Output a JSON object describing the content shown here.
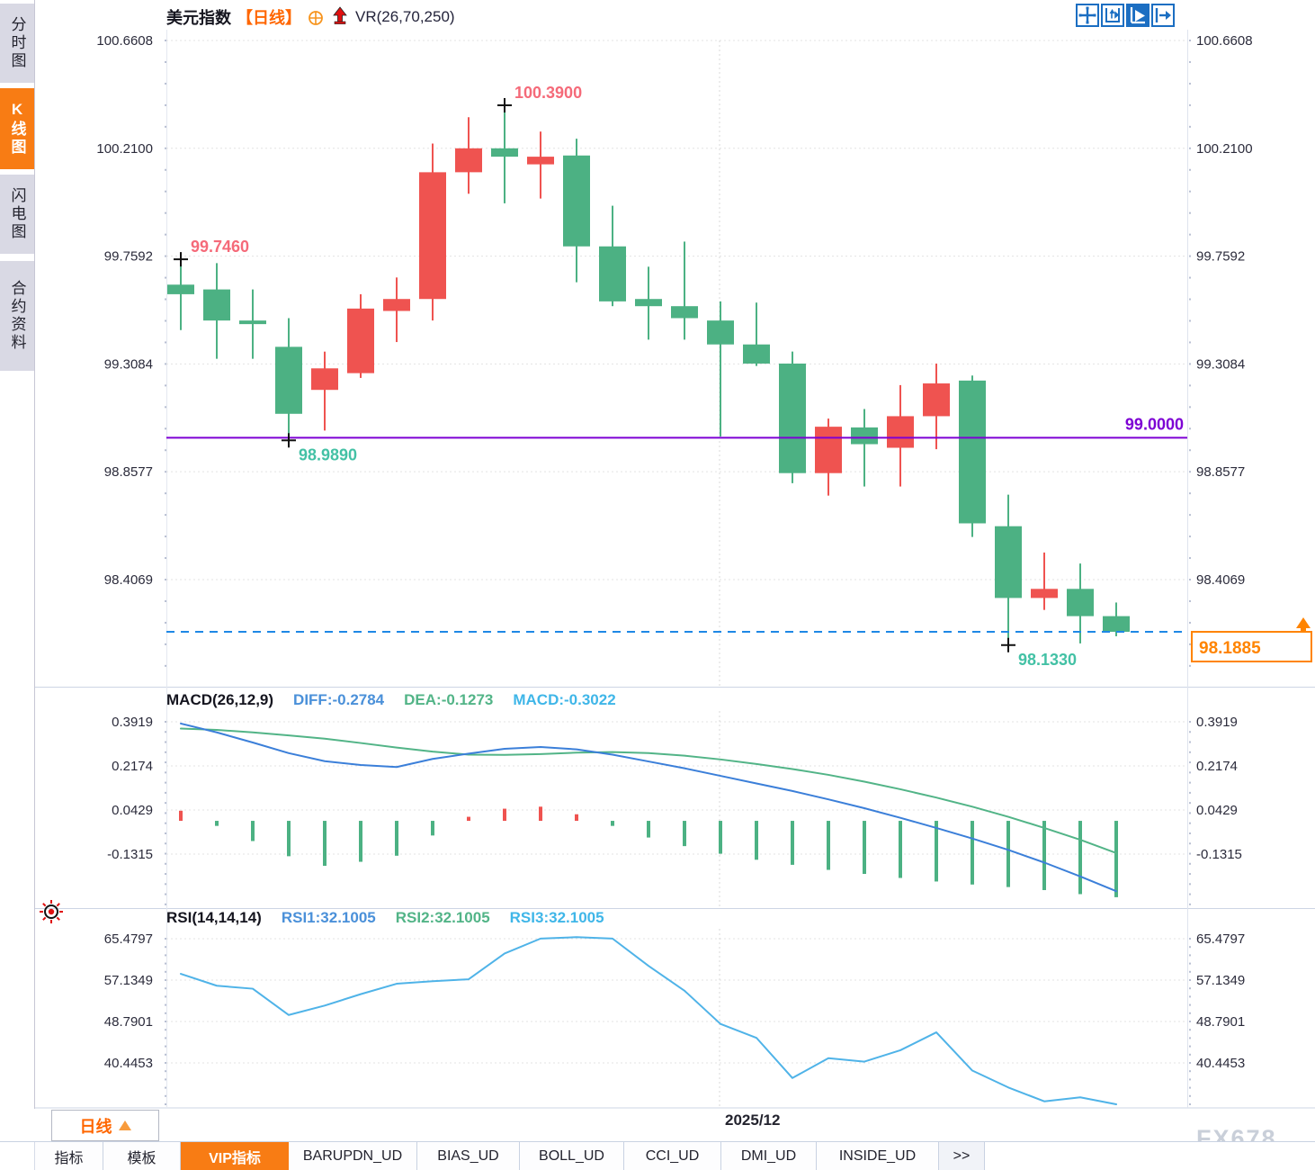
{
  "title": {
    "symbol": "美元指数",
    "period": "【日线】",
    "vr_label": "VR(26,70,250)",
    "icons": [
      "target-circle-icon",
      "red-up-arrow-icon"
    ]
  },
  "sidebar": {
    "items": [
      {
        "label": "分时图",
        "active": false
      },
      {
        "label": "K线图",
        "active": true
      },
      {
        "label": "闪电图",
        "active": false
      },
      {
        "label": "合约资料",
        "active": false
      }
    ]
  },
  "toolbar": {
    "icons": [
      {
        "name": "pan-cross-icon",
        "active": false
      },
      {
        "name": "axis-fit-icon",
        "active": false
      },
      {
        "name": "play-axis-icon",
        "active": true
      },
      {
        "name": "jump-latest-icon",
        "active": false
      }
    ]
  },
  "price_pane": {
    "axis_labels": [
      "100.6608",
      "100.2100",
      "99.7592",
      "99.3084",
      "98.8577",
      "98.4069"
    ],
    "hline_label": "99.0000",
    "current_label": "98.1885"
  },
  "macd_pane": {
    "header": "MACD(26,12,9)",
    "diff_label": "DIFF:-0.2784",
    "dea_label": "DEA:-0.1273",
    "macd_label": "MACD:-0.3022",
    "axis_labels": [
      "0.3919",
      "0.2174",
      "0.0429",
      "-0.1315"
    ]
  },
  "rsi_pane": {
    "header": "RSI(14,14,14)",
    "rsi1_label": "RSI1:32.1005",
    "rsi2_label": "RSI2:32.1005",
    "rsi3_label": "RSI3:32.1005",
    "axis_labels": [
      "65.4797",
      "57.1349",
      "48.7901",
      "40.4453"
    ],
    "sun_icon": "sun-marker-icon"
  },
  "bottom": {
    "period_label": "日线",
    "date_label": "2025/12",
    "watermark": "FX678",
    "tabs": [
      {
        "label": "指标",
        "active": false
      },
      {
        "label": "模板",
        "active": false
      },
      {
        "label": "VIP指标",
        "active": true
      },
      {
        "label": "BARUPDN_UD",
        "active": false
      },
      {
        "label": "BIAS_UD",
        "active": false
      },
      {
        "label": "BOLL_UD",
        "active": false
      },
      {
        "label": "CCI_UD",
        "active": false
      },
      {
        "label": "DMI_UD",
        "active": false
      },
      {
        "label": "INSIDE_UD",
        "active": false
      },
      {
        "label": ">>",
        "active": false
      }
    ]
  },
  "colors": {
    "up": "#ef5350",
    "down": "#4cb183",
    "macd_diff": "#3b7fd9",
    "macd_dea": "#52b487",
    "rsi_line": "#4fb3e8",
    "hline_purple": "#7d00d4",
    "current_blue": "#1e88e5",
    "accent_orange": "#ff8400",
    "annotation_red": "#f56a79",
    "annotation_teal": "#43c1a5",
    "axis_text": "#2b2b3b",
    "grid": "#e3e3e3",
    "cross": "#111111"
  },
  "chart_data": {
    "type": "candlestick",
    "title": "美元指数 日线",
    "legend_position": "top-left",
    "grid": "dotted",
    "price_axis_values": [
      100.6608,
      100.21,
      99.7592,
      99.3084,
      98.8577,
      98.4069
    ],
    "horizontal_line_value": 99.0,
    "current_price": 98.1885,
    "dashed_line_value": 98.1885,
    "date_label": "2025/12",
    "date_label_candle_index": 15,
    "candles": [
      {
        "o": 99.64,
        "h": 99.746,
        "l": 99.45,
        "c": 99.6
      },
      {
        "o": 99.62,
        "h": 99.73,
        "l": 99.33,
        "c": 99.49
      },
      {
        "o": 99.49,
        "h": 99.62,
        "l": 99.33,
        "c": 99.475
      },
      {
        "o": 99.38,
        "h": 99.5,
        "l": 98.989,
        "c": 99.1
      },
      {
        "o": 99.2,
        "h": 99.36,
        "l": 99.03,
        "c": 99.29
      },
      {
        "o": 99.27,
        "h": 99.6,
        "l": 99.25,
        "c": 99.54
      },
      {
        "o": 99.53,
        "h": 99.67,
        "l": 99.4,
        "c": 99.58
      },
      {
        "o": 99.58,
        "h": 100.23,
        "l": 99.49,
        "c": 100.11
      },
      {
        "o": 100.11,
        "h": 100.34,
        "l": 100.02,
        "c": 100.21
      },
      {
        "o": 100.21,
        "h": 100.39,
        "l": 99.98,
        "c": 100.175
      },
      {
        "o": 100.143,
        "h": 100.28,
        "l": 100.0,
        "c": 100.175
      },
      {
        "o": 100.18,
        "h": 100.25,
        "l": 99.65,
        "c": 99.8
      },
      {
        "o": 99.8,
        "h": 99.97,
        "l": 99.55,
        "c": 99.57
      },
      {
        "o": 99.58,
        "h": 99.715,
        "l": 99.41,
        "c": 99.55
      },
      {
        "o": 99.55,
        "h": 99.82,
        "l": 99.41,
        "c": 99.5
      },
      {
        "o": 99.49,
        "h": 99.57,
        "l": 99.005,
        "c": 99.39
      },
      {
        "o": 99.39,
        "h": 99.565,
        "l": 99.3,
        "c": 99.31
      },
      {
        "o": 99.31,
        "h": 99.36,
        "l": 98.81,
        "c": 98.852
      },
      {
        "o": 98.852,
        "h": 99.08,
        "l": 98.758,
        "c": 99.046
      },
      {
        "o": 99.043,
        "h": 99.12,
        "l": 98.796,
        "c": 98.973
      },
      {
        "o": 98.958,
        "h": 99.22,
        "l": 98.796,
        "c": 99.09
      },
      {
        "o": 99.09,
        "h": 99.31,
        "l": 98.952,
        "c": 99.227
      },
      {
        "o": 99.239,
        "h": 99.26,
        "l": 98.585,
        "c": 98.642
      },
      {
        "o": 98.63,
        "h": 98.762,
        "l": 98.133,
        "c": 98.33
      },
      {
        "o": 98.33,
        "h": 98.52,
        "l": 98.28,
        "c": 98.368
      },
      {
        "o": 98.368,
        "h": 98.474,
        "l": 98.14,
        "c": 98.254
      },
      {
        "o": 98.254,
        "h": 98.311,
        "l": 98.17,
        "c": 98.1885
      }
    ],
    "annotations": [
      {
        "text": "99.7460",
        "candle": 0,
        "anchor": "high",
        "color": "red"
      },
      {
        "text": "100.3900",
        "candle": 9,
        "anchor": "high",
        "color": "red"
      },
      {
        "text": "98.9890",
        "candle": 3,
        "anchor": "low",
        "color": "teal"
      },
      {
        "text": "98.1330",
        "candle": 23,
        "anchor": "low",
        "color": "teal"
      }
    ],
    "macd": {
      "axis_values": [
        0.3919,
        0.2174,
        0.0429,
        -0.1315
      ],
      "diff": [
        0.385,
        0.35,
        0.31,
        0.268,
        0.236,
        0.221,
        0.213,
        0.245,
        0.266,
        0.285,
        0.292,
        0.283,
        0.262,
        0.235,
        0.208,
        0.178,
        0.148,
        0.118,
        0.085,
        0.05,
        0.012,
        -0.028,
        -0.07,
        -0.115,
        -0.165,
        -0.22,
        -0.2784
      ],
      "dea": [
        0.365,
        0.36,
        0.35,
        0.338,
        0.325,
        0.308,
        0.29,
        0.274,
        0.262,
        0.261,
        0.264,
        0.27,
        0.272,
        0.268,
        0.258,
        0.243,
        0.225,
        0.205,
        0.182,
        0.155,
        0.125,
        0.092,
        0.056,
        0.016,
        -0.028,
        -0.075,
        -0.1273
      ],
      "hist": [
        0.04,
        -0.02,
        -0.08,
        -0.14,
        -0.178,
        -0.162,
        -0.138,
        -0.058,
        0.016,
        0.048,
        0.056,
        0.026,
        -0.02,
        -0.066,
        -0.1,
        -0.13,
        -0.154,
        -0.174,
        -0.194,
        -0.21,
        -0.226,
        -0.24,
        -0.252,
        -0.262,
        -0.274,
        -0.29,
        -0.3022
      ]
    },
    "rsi": {
      "axis_values": [
        65.4797,
        57.1349,
        48.7901,
        40.4453
      ],
      "values": [
        58.4,
        56.0,
        55.4,
        50.1,
        52.0,
        54.3,
        56.4,
        56.9,
        57.3,
        62.5,
        65.5,
        65.8,
        65.5,
        60.0,
        55.0,
        48.3,
        45.5,
        37.4,
        41.4,
        40.7,
        43.0,
        46.6,
        38.9,
        35.5,
        32.7,
        33.5,
        32.1
      ]
    }
  }
}
